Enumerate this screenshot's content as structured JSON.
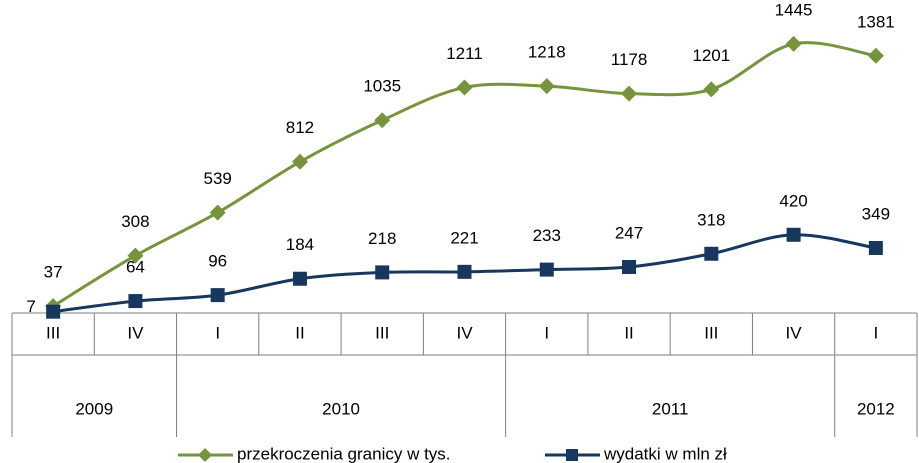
{
  "chart_data": {
    "type": "line",
    "categories": [
      "III",
      "IV",
      "I",
      "II",
      "III",
      "IV",
      "I",
      "II",
      "III",
      "IV",
      "I"
    ],
    "groups": [
      {
        "label": "2009",
        "count": 2
      },
      {
        "label": "2010",
        "count": 4
      },
      {
        "label": "2011",
        "count": 4
      },
      {
        "label": "2012",
        "count": 1
      }
    ],
    "series": [
      {
        "name": "przekroczenia granicy w tys.",
        "color": "#77933c",
        "marker": "diamond",
        "values": [
          37,
          308,
          539,
          812,
          1035,
          1211,
          1218,
          1178,
          1201,
          1445,
          1381
        ]
      },
      {
        "name": "wydatki w mln zł",
        "color": "#17375e",
        "marker": "square",
        "values": [
          7,
          64,
          96,
          184,
          218,
          221,
          233,
          247,
          318,
          420,
          349
        ]
      }
    ],
    "ylim": [
      0,
      1600
    ]
  }
}
